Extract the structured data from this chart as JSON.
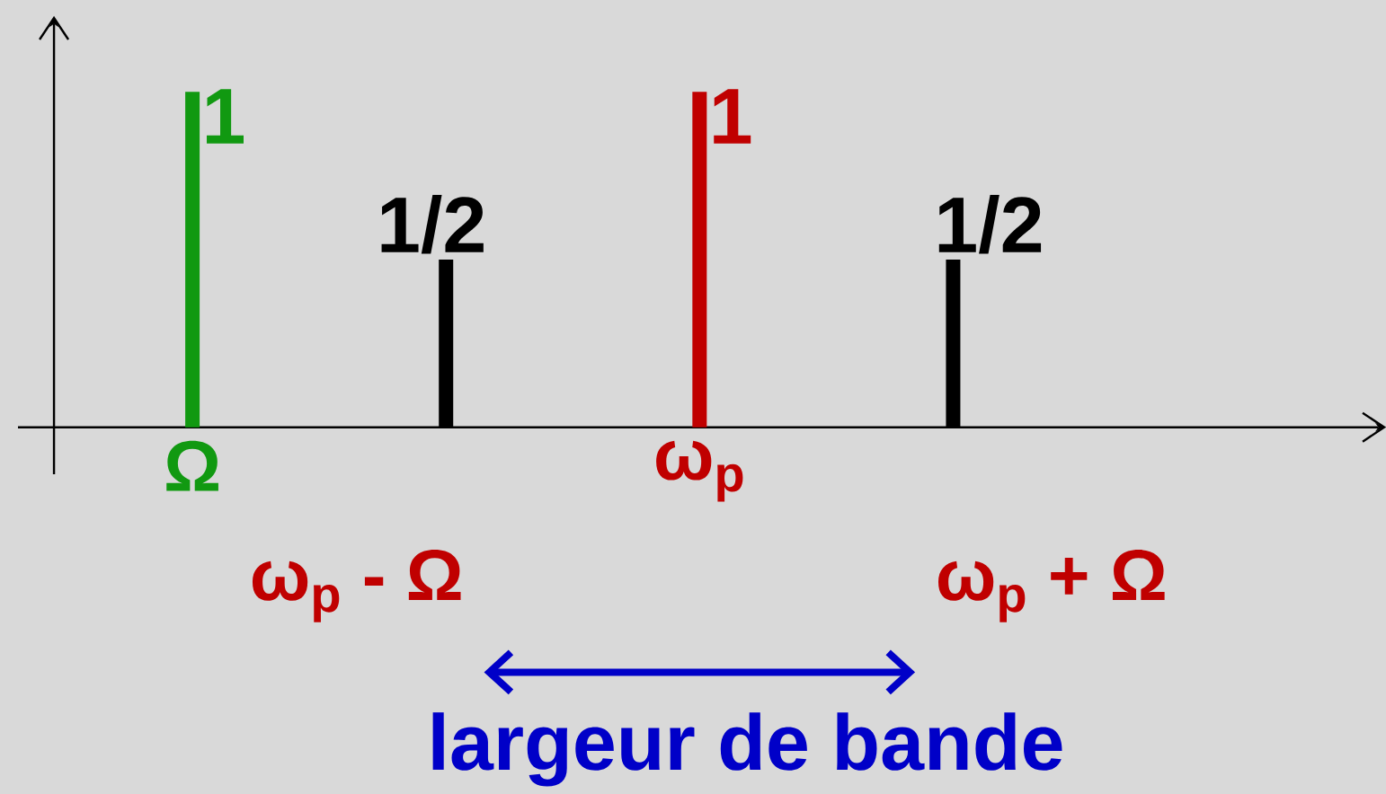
{
  "chart_data": {
    "type": "bar",
    "categories": [
      "Ω",
      null,
      "ω$_{p}$",
      null
    ],
    "values": [
      1,
      0.5,
      1,
      0.5
    ],
    "colors": [
      "#119911",
      "#000000",
      "#c00000",
      "#000000"
    ],
    "value_labels": [
      "1",
      "1/2",
      "1",
      "1/2"
    ],
    "annotations": [
      "ω$_{p}$ - Ω",
      "ω$_{p}$ + Ω",
      "largeur de bande"
    ]
  }
}
